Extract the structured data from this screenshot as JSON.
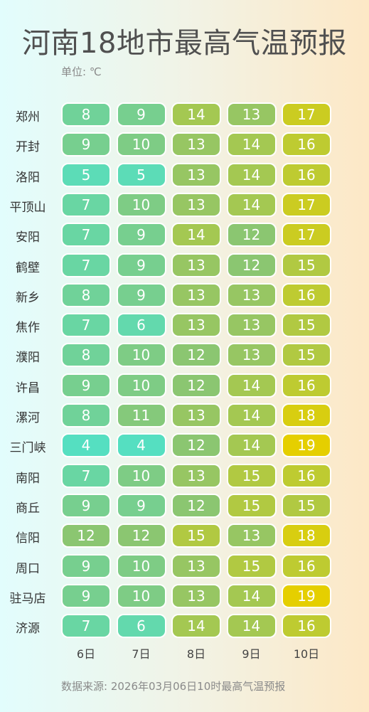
{
  "title": "河南18地市最高气温预报",
  "unit_label": "单位: ℃",
  "source": "数据来源: 2026年03月06日10时最高气温预报",
  "chart_data": {
    "type": "heatmap",
    "title": "河南18地市最高气温预报",
    "x": [
      "6日",
      "7日",
      "8日",
      "9日",
      "10日"
    ],
    "y": [
      "郑州",
      "开封",
      "洛阳",
      "平顶山",
      "安阳",
      "鹤壁",
      "新乡",
      "焦作",
      "濮阳",
      "许昌",
      "漯河",
      "三门峡",
      "南阳",
      "商丘",
      "信阳",
      "周口",
      "驻马店",
      "济源"
    ],
    "values": [
      [
        8,
        9,
        14,
        13,
        17
      ],
      [
        9,
        10,
        13,
        14,
        16
      ],
      [
        5,
        5,
        13,
        14,
        16
      ],
      [
        7,
        10,
        13,
        14,
        17
      ],
      [
        7,
        9,
        14,
        12,
        17
      ],
      [
        7,
        9,
        13,
        12,
        15
      ],
      [
        8,
        9,
        13,
        13,
        16
      ],
      [
        7,
        6,
        13,
        13,
        15
      ],
      [
        8,
        10,
        12,
        13,
        15
      ],
      [
        9,
        10,
        12,
        14,
        16
      ],
      [
        8,
        11,
        13,
        14,
        18
      ],
      [
        4,
        4,
        12,
        14,
        19
      ],
      [
        7,
        10,
        13,
        15,
        16
      ],
      [
        9,
        9,
        12,
        15,
        15
      ],
      [
        12,
        12,
        15,
        13,
        18
      ],
      [
        9,
        10,
        13,
        15,
        16
      ],
      [
        9,
        10,
        13,
        14,
        19
      ],
      [
        7,
        6,
        14,
        14,
        16
      ]
    ],
    "color_scale": {
      "min": 4,
      "max": 19,
      "low_color": "#55dfc1",
      "mid_color": "#8dc56f",
      "high_color": "#e5cf00"
    }
  }
}
